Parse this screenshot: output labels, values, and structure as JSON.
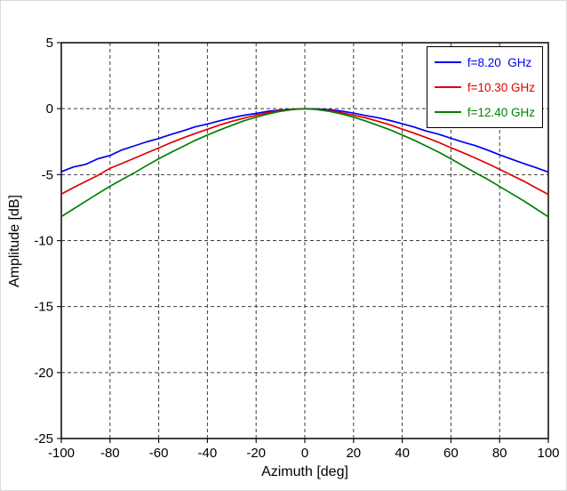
{
  "chart_data": {
    "type": "line",
    "title": "",
    "xlabel": "Azimuth [deg]",
    "ylabel": "Amplitude [dB]",
    "xlim": [
      -100,
      100
    ],
    "ylim": [
      -25,
      5
    ],
    "xticks": [
      -100,
      -80,
      -60,
      -40,
      -20,
      0,
      20,
      40,
      60,
      80,
      100
    ],
    "yticks": [
      5,
      0,
      -5,
      -10,
      -15,
      -20,
      -25
    ],
    "grid": true,
    "grid_style": "dashed",
    "legend_position": "top-right",
    "x": [
      -100,
      -95,
      -90,
      -85,
      -80,
      -75,
      -70,
      -65,
      -60,
      -55,
      -50,
      -45,
      -40,
      -35,
      -30,
      -25,
      -20,
      -15,
      -10,
      -5,
      0,
      5,
      10,
      15,
      20,
      25,
      30,
      35,
      40,
      45,
      50,
      55,
      60,
      65,
      70,
      75,
      80,
      85,
      90,
      95,
      100
    ],
    "series": [
      {
        "name": "f=8.20  GHz",
        "color": "#0000EE",
        "values": [
          -4.78,
          -4.42,
          -4.22,
          -3.8,
          -3.55,
          -3.12,
          -2.82,
          -2.52,
          -2.26,
          -1.96,
          -1.68,
          -1.38,
          -1.16,
          -0.92,
          -0.7,
          -0.5,
          -0.36,
          -0.2,
          -0.1,
          -0.04,
          0.0,
          -0.02,
          -0.08,
          -0.18,
          -0.34,
          -0.52,
          -0.68,
          -0.9,
          -1.14,
          -1.4,
          -1.7,
          -1.94,
          -2.24,
          -2.54,
          -2.8,
          -3.14,
          -3.5,
          -3.84,
          -4.16,
          -4.48,
          -4.8
        ]
      },
      {
        "name": "f=10.30 GHz",
        "color": "#E00000",
        "values": [
          -6.48,
          -5.98,
          -5.52,
          -5.06,
          -4.52,
          -4.14,
          -3.76,
          -3.36,
          -2.98,
          -2.58,
          -2.22,
          -1.88,
          -1.56,
          -1.24,
          -0.96,
          -0.72,
          -0.5,
          -0.3,
          -0.16,
          -0.05,
          0.0,
          -0.05,
          -0.15,
          -0.3,
          -0.5,
          -0.7,
          -0.95,
          -1.22,
          -1.55,
          -1.86,
          -2.2,
          -2.56,
          -2.96,
          -3.34,
          -3.74,
          -4.16,
          -4.6,
          -5.05,
          -5.5,
          -6.0,
          -6.5
        ]
      },
      {
        "name": "f=12.40 GHz",
        "color": "#008000",
        "values": [
          -8.18,
          -7.6,
          -7.02,
          -6.44,
          -5.88,
          -5.36,
          -4.86,
          -4.32,
          -3.8,
          -3.32,
          -2.86,
          -2.4,
          -2.0,
          -1.62,
          -1.26,
          -0.92,
          -0.64,
          -0.4,
          -0.2,
          -0.07,
          0.0,
          -0.06,
          -0.2,
          -0.4,
          -0.64,
          -0.94,
          -1.26,
          -1.6,
          -2.0,
          -2.4,
          -2.85,
          -3.3,
          -3.8,
          -4.34,
          -4.85,
          -5.35,
          -5.9,
          -6.45,
          -7.0,
          -7.6,
          -8.2
        ]
      }
    ]
  }
}
